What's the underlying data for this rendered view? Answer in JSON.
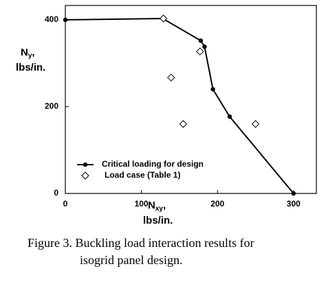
{
  "chart_data": {
    "type": "line",
    "x_label": [
      "N",
      "xy",
      ",",
      "lbs/in."
    ],
    "y_label": [
      "N",
      "y",
      ",",
      "lbs/in."
    ],
    "caption": [
      "Figure 3.  Buckling load interaction results for",
      "isogrid panel design."
    ],
    "xlim": [
      0,
      330
    ],
    "xticks": [
      0,
      100,
      200,
      300
    ],
    "ylim": [
      0,
      433
    ],
    "yticks": [
      0,
      200,
      400
    ],
    "series": [
      {
        "name": "Critical loading for design",
        "color": "#000000",
        "line": true,
        "marker": "dot",
        "x": [
          0,
          128,
          178,
          183,
          194,
          216,
          300
        ],
        "values": [
          400,
          403,
          352,
          338,
          240,
          177,
          0
        ]
      },
      {
        "name": "Load case (Table 1)",
        "color": "#000000",
        "line": false,
        "marker": "diamond",
        "x": [
          129,
          177,
          139,
          155,
          250
        ],
        "values": [
          403,
          327,
          267,
          160,
          160
        ]
      }
    ]
  }
}
